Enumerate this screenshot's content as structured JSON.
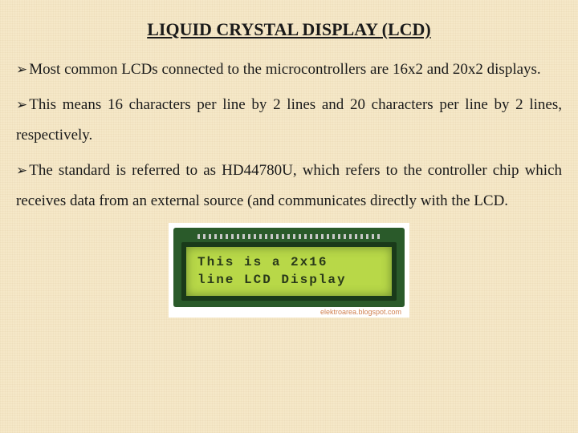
{
  "title": "LIQUID CRYSTAL DISPLAY (LCD)",
  "bullet_glyph": "➢",
  "paragraphs": [
    "Most common LCDs connected to the microcontrollers are 16x2 and 20x2 displays.",
    "This means 16 characters per line by 2 lines and 20 characters per line by 2 lines, respectively.",
    "The standard is referred to as HD44780U, which refers to the controller chip which receives data from an external source (and communicates directly with the LCD."
  ],
  "lcd": {
    "line1": "This is a 2x16",
    "line2": "line LCD Display",
    "watermark": "elektroarea.blogspot.com",
    "module_color": "#2a5a2a",
    "screen_bg": "#b8d848",
    "screen_border": "#1a3a1a",
    "text_color": "#2a3a1a"
  },
  "colors": {
    "page_bg": "#f5e8c8",
    "text": "#1a1a1a"
  }
}
